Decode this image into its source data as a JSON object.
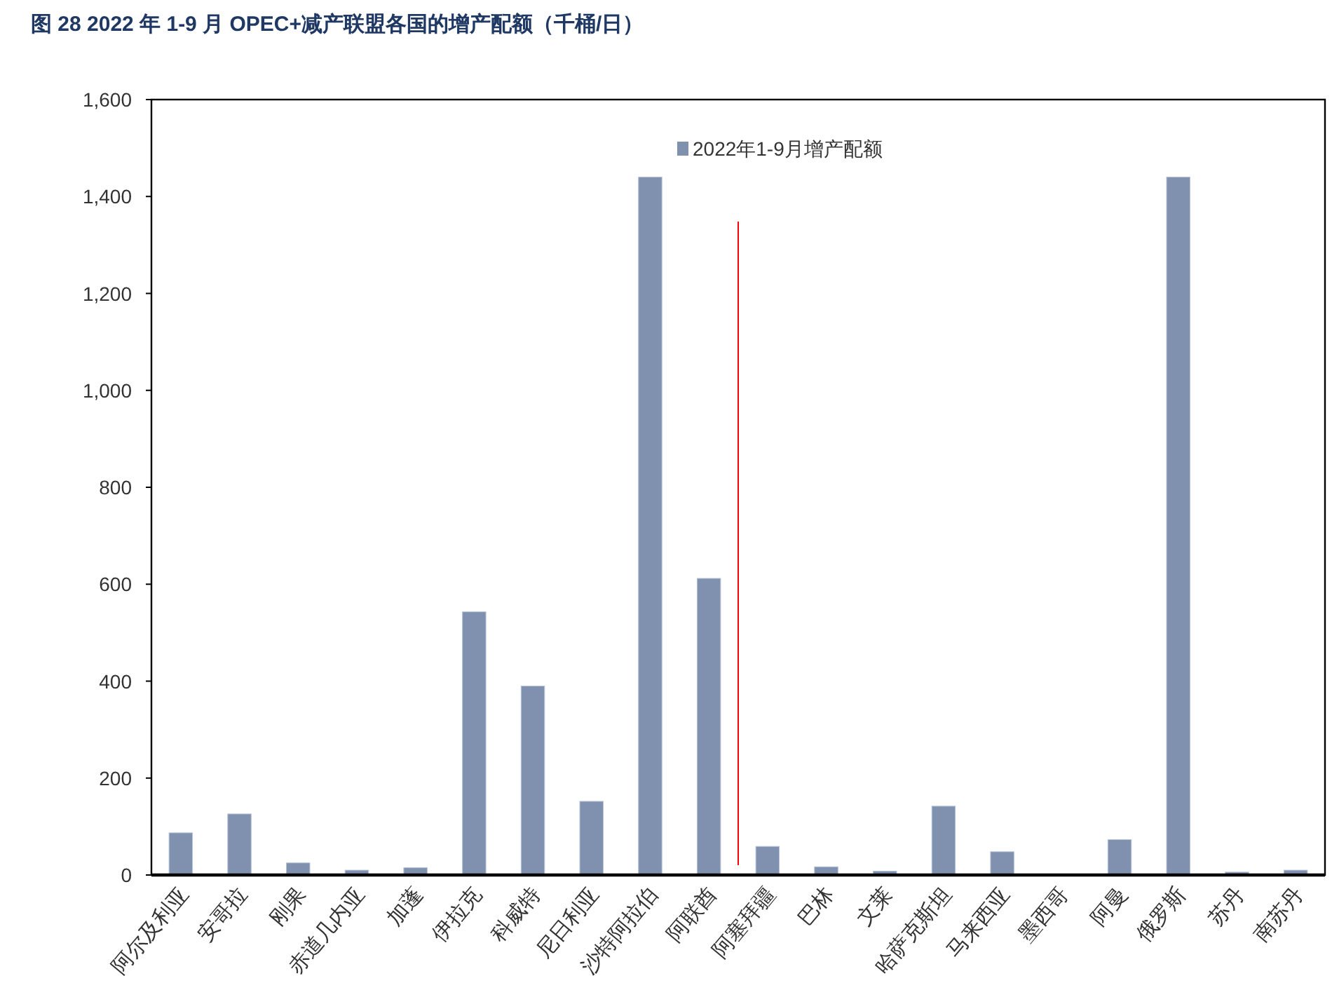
{
  "chart_data": {
    "type": "bar",
    "title": "图 28  2022 年 1-9 月 OPEC+减产联盟各国的增产配额（千桶/日）",
    "categories": [
      "阿尔及利亚",
      "安哥拉",
      "刚果",
      "赤道几内亚",
      "加蓬",
      "伊拉克",
      "科威特",
      "尼日利亚",
      "沙特阿拉伯",
      "阿联酋",
      "阿塞拜疆",
      "巴林",
      "文莱",
      "哈萨克斯坦",
      "马来西亚",
      "墨西哥",
      "阿曼",
      "俄罗斯",
      "苏丹",
      "南苏丹"
    ],
    "series": [
      {
        "name": "2022年1-9月增产配额",
        "color": "#8091b0",
        "values": [
          87,
          126,
          25,
          10,
          15,
          543,
          390,
          152,
          1440,
          612,
          59,
          17,
          8,
          142,
          48,
          0,
          73,
          1440,
          6,
          10
        ]
      }
    ],
    "ylim": [
      0,
      1600
    ],
    "yticks": [
      0,
      200,
      400,
      600,
      800,
      {
        "value": 1000,
        "label": "1,000"
      },
      {
        "value": 1200,
        "label": "1,200"
      },
      {
        "value": 1400,
        "label": "1,400"
      },
      {
        "value": 1600,
        "label": "1,600"
      }
    ],
    "ref_lines": [
      {
        "axis": "x",
        "value": "阿塞拜疆",
        "color": "#ff0000"
      }
    ],
    "legend": "top",
    "grid": false
  }
}
